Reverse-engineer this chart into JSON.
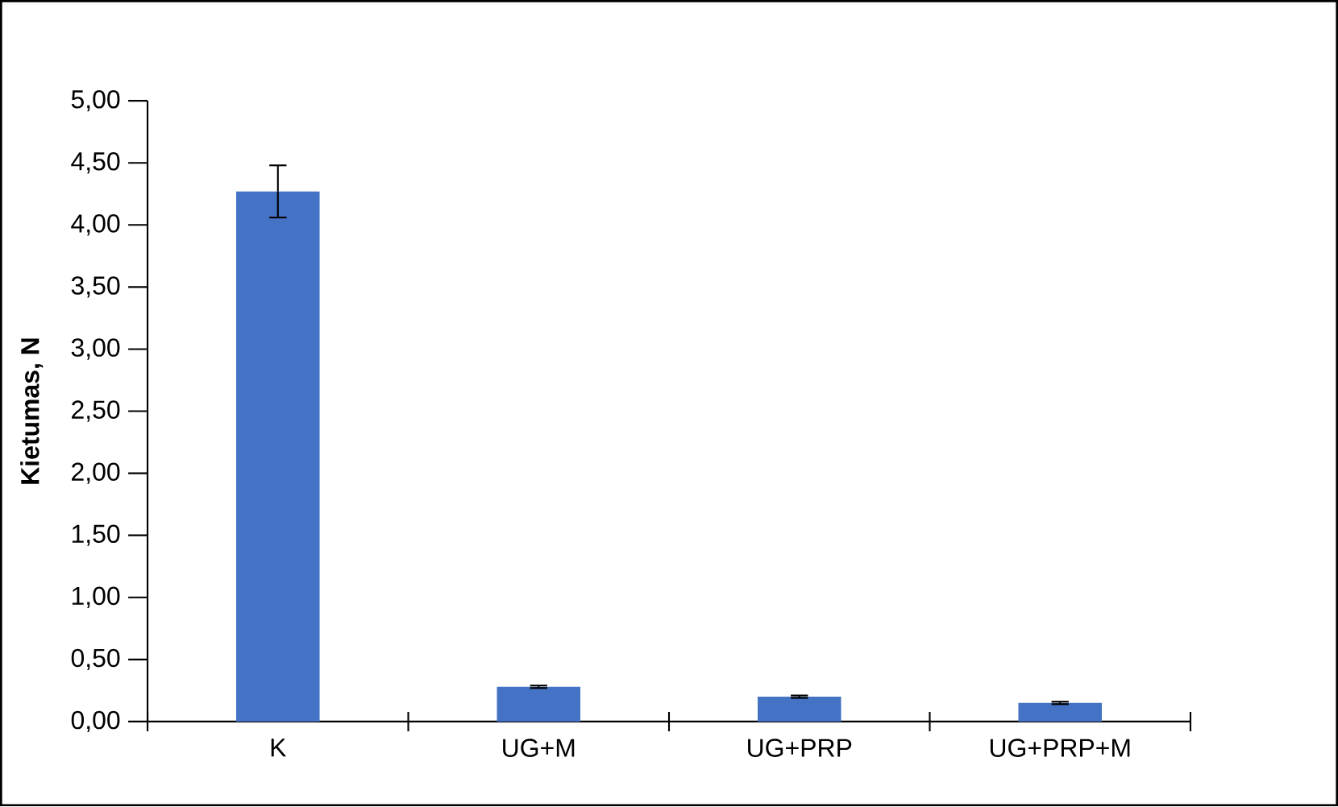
{
  "chart_data": {
    "type": "bar",
    "ylabel": "Kietumas, N",
    "categories": [
      "K",
      "UG+M",
      "UG+PRP",
      "UG+PRP+M"
    ],
    "values": [
      4.27,
      0.28,
      0.2,
      0.15
    ],
    "errors": [
      0.21,
      0.01,
      0.01,
      0.01
    ],
    "colors": [
      "#4472c4",
      "#4472c4",
      "#4472c4",
      "#4472c4"
    ],
    "ylim": [
      0,
      5
    ],
    "yticks": [
      {
        "value": 0,
        "label": "0,00"
      },
      {
        "value": 0.5,
        "label": "0,50"
      },
      {
        "value": 1,
        "label": "1,00"
      },
      {
        "value": 1.5,
        "label": "1,50"
      },
      {
        "value": 2,
        "label": "2,00"
      },
      {
        "value": 2.5,
        "label": "2,50"
      },
      {
        "value": 3,
        "label": "3,00"
      },
      {
        "value": 3.5,
        "label": "3,50"
      },
      {
        "value": 4,
        "label": "4,00"
      },
      {
        "value": 4.5,
        "label": "4,50"
      },
      {
        "value": 5,
        "label": "5,00"
      }
    ]
  }
}
